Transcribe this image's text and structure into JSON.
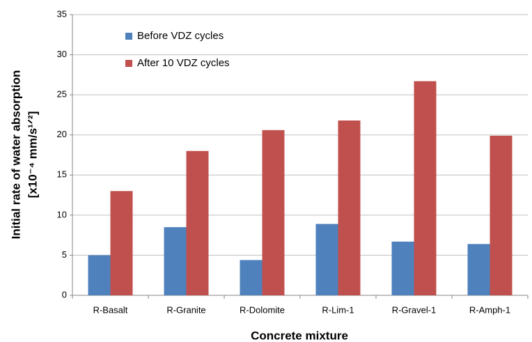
{
  "chart_data": {
    "type": "bar",
    "xlabel": "Concrete mixture",
    "ylabel": [
      "Initial rate of water absorption",
      "[x10⁻⁴ mm/s¹ᐟ²]"
    ],
    "categories": [
      "R-Basalt",
      "R-Granite",
      "R-Dolomite",
      "R-Lim-1",
      "R-Gravel-1",
      "R-Amph-1"
    ],
    "series": [
      {
        "name": "Before VDZ cycles",
        "color": "#4f81bd",
        "values": [
          5.0,
          8.5,
          4.4,
          8.9,
          6.7,
          6.4
        ]
      },
      {
        "name": "After 10 VDZ cycles",
        "color": "#c0504d",
        "values": [
          13.0,
          18.0,
          20.6,
          21.8,
          26.7,
          19.9
        ]
      }
    ],
    "ylim": [
      0,
      35
    ],
    "yticks": [
      0,
      5,
      10,
      15,
      20,
      25,
      30,
      35
    ],
    "grid": true,
    "legend": "upper left"
  }
}
